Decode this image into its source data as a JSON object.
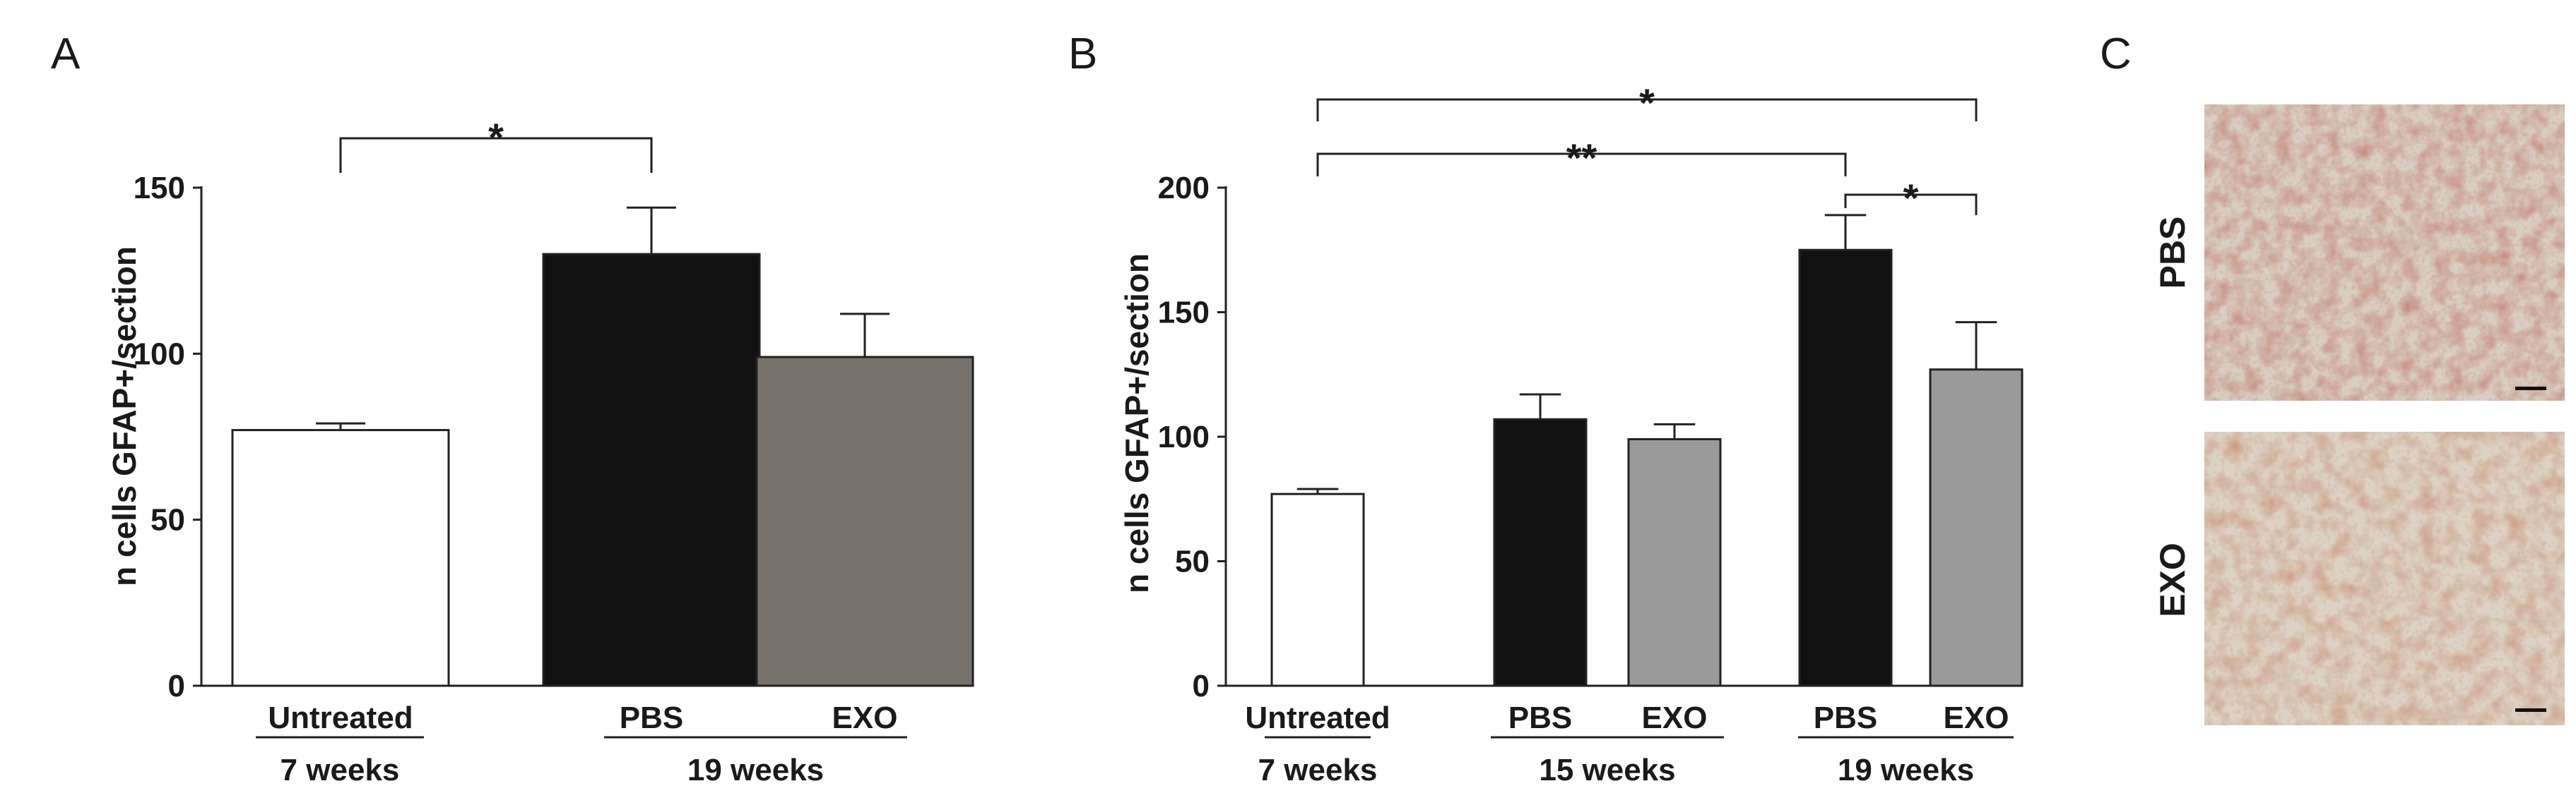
{
  "panel_letters": [
    "A",
    "B",
    "C"
  ],
  "chart_data": [
    {
      "panel": "A",
      "type": "bar",
      "ylabel": "n cells GFAP+/section",
      "ylim": [
        0,
        150
      ],
      "yticks": [
        0,
        50,
        100,
        150
      ],
      "categories": [
        "Untreated",
        "PBS",
        "EXO"
      ],
      "values": [
        77,
        130,
        99
      ],
      "errors": [
        2,
        14,
        13
      ],
      "colors": [
        "#ffffff",
        "#111111",
        "#77726b"
      ],
      "groups": [
        {
          "label": "7 weeks",
          "members": [
            0
          ]
        },
        {
          "label": "19 weeks",
          "members": [
            1,
            2
          ]
        }
      ],
      "significance": [
        {
          "from": 0,
          "to": 1,
          "label": "*"
        }
      ]
    },
    {
      "panel": "B",
      "type": "bar",
      "ylabel": "n cells GFAP+/section",
      "ylim": [
        0,
        200
      ],
      "yticks": [
        0,
        50,
        100,
        150,
        200
      ],
      "categories": [
        "Untreated",
        "PBS",
        "EXO",
        "PBS",
        "EXO"
      ],
      "values": [
        77,
        107,
        99,
        175,
        127
      ],
      "errors": [
        2,
        10,
        6,
        14,
        19
      ],
      "colors": [
        "#ffffff",
        "#111111",
        "#9a9a9a",
        "#111111",
        "#9a9a9a"
      ],
      "groups": [
        {
          "label": "7 weeks",
          "members": [
            0
          ]
        },
        {
          "label": "15 weeks",
          "members": [
            1,
            2
          ]
        },
        {
          "label": "19 weeks",
          "members": [
            3,
            4
          ]
        }
      ],
      "significance": [
        {
          "from": 0,
          "to": 4,
          "label": "*"
        },
        {
          "from": 0,
          "to": 3,
          "label": "**"
        },
        {
          "from": 3,
          "to": 4,
          "label": "*"
        }
      ]
    }
  ],
  "micrographs": [
    {
      "label": "PBS"
    },
    {
      "label": "EXO"
    }
  ]
}
